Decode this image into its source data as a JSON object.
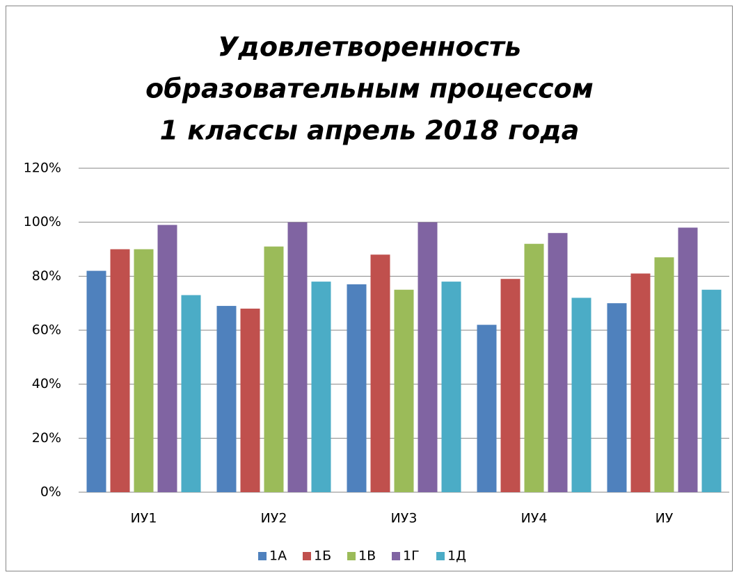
{
  "chart_data": {
    "type": "bar",
    "title": [
      "Удовлетворенность",
      "образовательным процессом",
      "1 классы апрель 2018 года"
    ],
    "categories": [
      "ИУ1",
      "ИУ2",
      "ИУ3",
      "ИУ4",
      "ИУ"
    ],
    "series": [
      {
        "name": "1А",
        "color": "#4f81bd",
        "values": [
          82,
          69,
          77,
          62,
          70
        ]
      },
      {
        "name": "1Б",
        "color": "#c0504d",
        "values": [
          90,
          68,
          88,
          79,
          81
        ]
      },
      {
        "name": "1В",
        "color": "#9bbb59",
        "values": [
          90,
          91,
          75,
          92,
          87
        ]
      },
      {
        "name": "1Г",
        "color": "#8064a2",
        "values": [
          99,
          100,
          100,
          96,
          98
        ]
      },
      {
        "name": "1Д",
        "color": "#4bacc6",
        "values": [
          73,
          78,
          78,
          72,
          75
        ]
      }
    ],
    "ylim": [
      0,
      120
    ],
    "yticks": [
      {
        "value": 0,
        "label": "0%"
      },
      {
        "value": 20,
        "label": "20%"
      },
      {
        "value": 40,
        "label": "40%"
      },
      {
        "value": 60,
        "label": "60%"
      },
      {
        "value": 80,
        "label": "80%"
      },
      {
        "value": 100,
        "label": "100%"
      },
      {
        "value": 120,
        "label": "120%"
      }
    ],
    "grid": true,
    "legend": "bottom"
  }
}
